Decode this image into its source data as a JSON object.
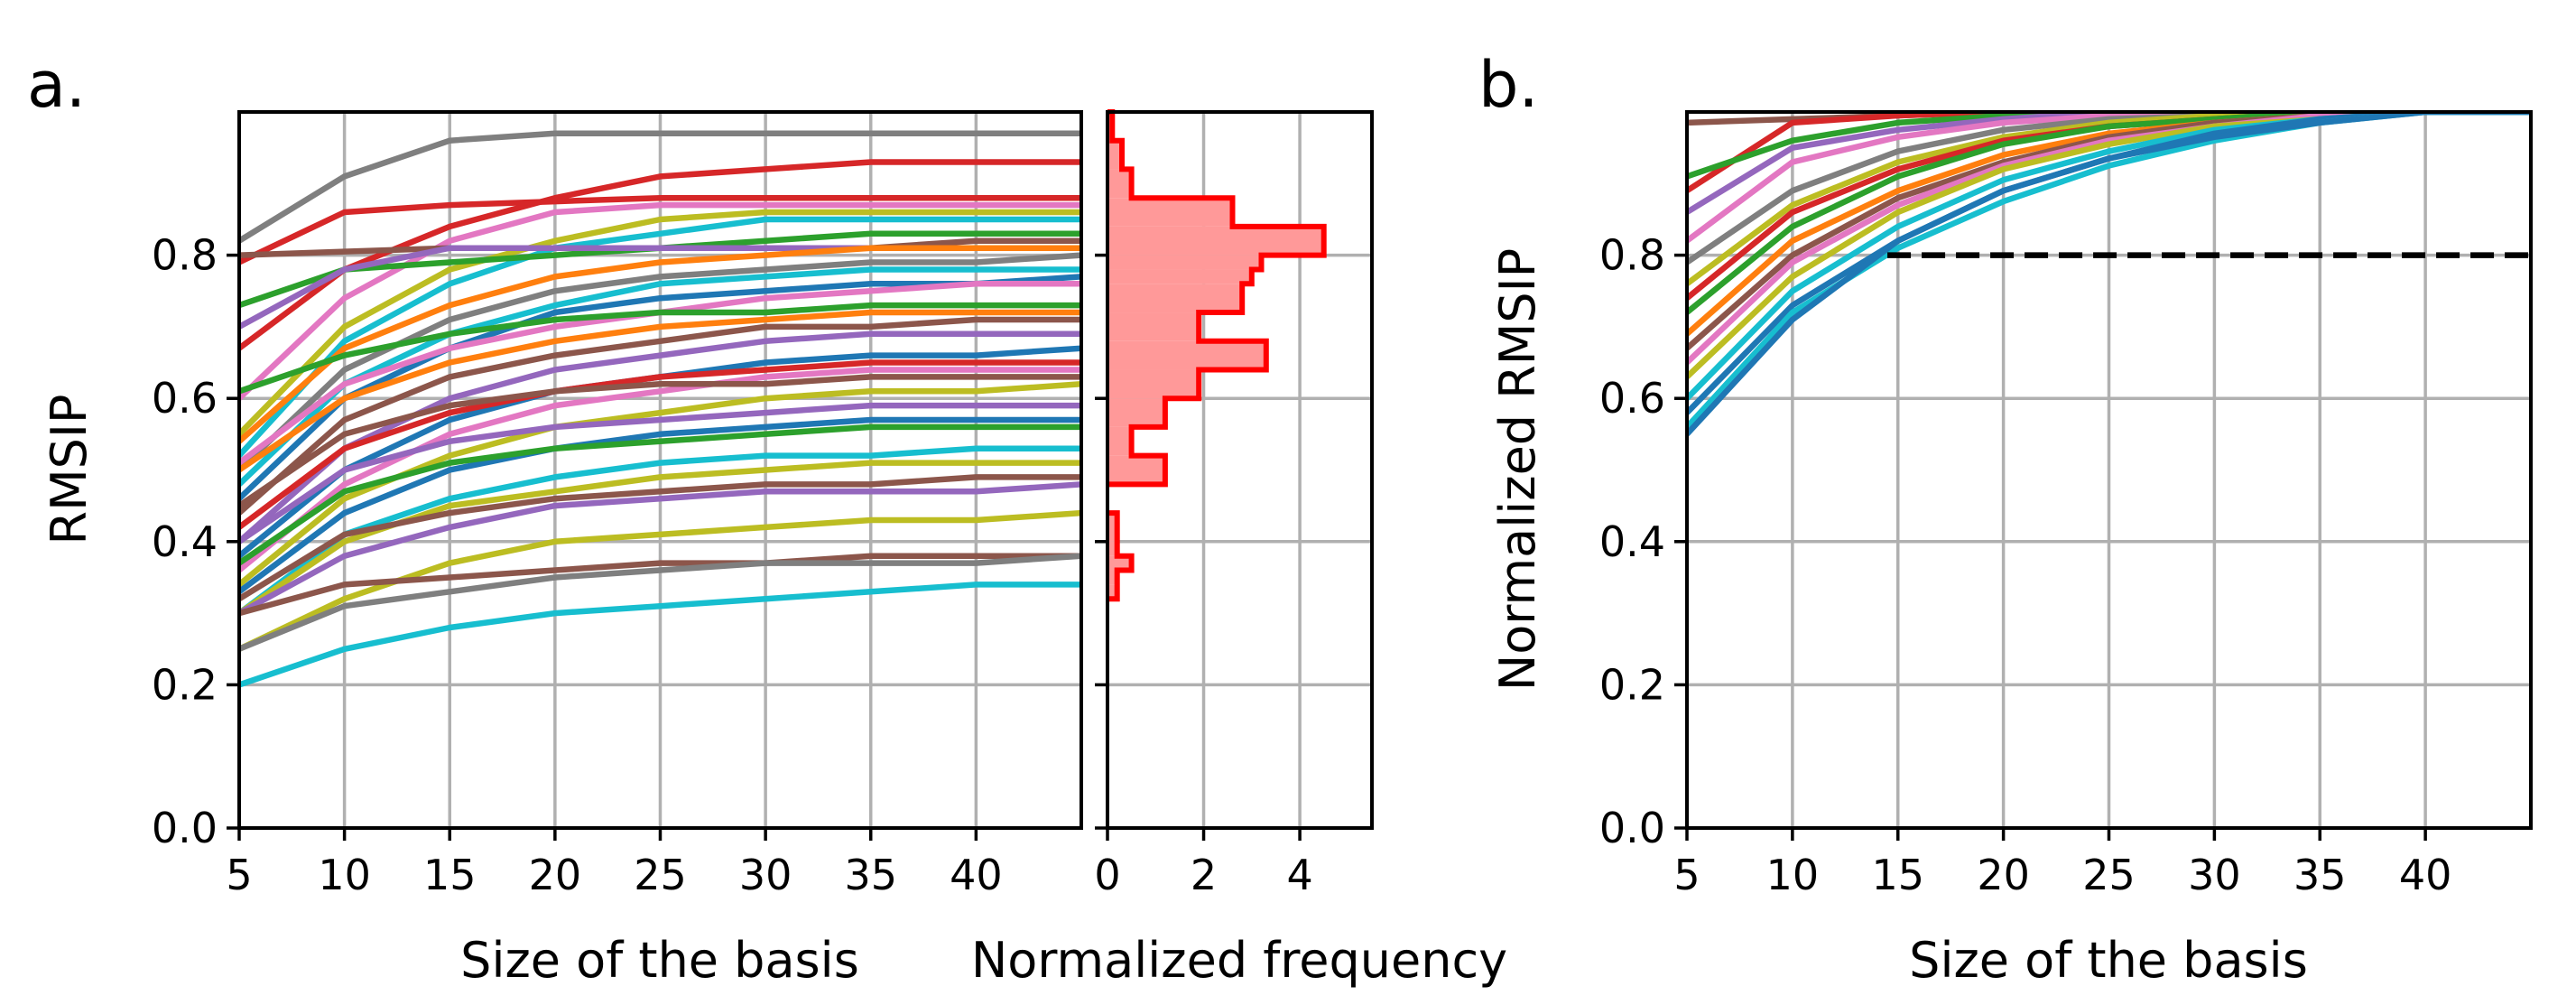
{
  "chart_data": [
    {
      "panel": "a.",
      "type": "line",
      "xlabel": "Size of the basis",
      "ylabel": "RMSIP",
      "x": [
        5,
        10,
        15,
        20,
        25,
        30,
        35,
        40,
        45
      ],
      "xlim": [
        5,
        45
      ],
      "ylim": [
        0,
        1
      ],
      "xticks": [
        "5",
        "10",
        "15",
        "20",
        "25",
        "30",
        "35",
        "40"
      ],
      "yticks": [
        "0.0",
        "0.2",
        "0.4",
        "0.6",
        "0.8"
      ],
      "grid": true,
      "series": [
        {
          "color": "#7f7f7f",
          "values": [
            0.82,
            0.91,
            0.96,
            0.97,
            0.97,
            0.97,
            0.97,
            0.97,
            0.97
          ]
        },
        {
          "color": "#d62728",
          "values": [
            0.67,
            0.78,
            0.84,
            0.88,
            0.91,
            0.92,
            0.93,
            0.93,
            0.93
          ]
        },
        {
          "color": "#d62728",
          "values": [
            0.79,
            0.86,
            0.87,
            0.875,
            0.88,
            0.88,
            0.88,
            0.88,
            0.88
          ]
        },
        {
          "color": "#e377c2",
          "values": [
            0.6,
            0.74,
            0.82,
            0.86,
            0.87,
            0.87,
            0.87,
            0.87,
            0.87
          ]
        },
        {
          "color": "#bcbd22",
          "values": [
            0.55,
            0.7,
            0.78,
            0.82,
            0.85,
            0.86,
            0.86,
            0.86,
            0.86
          ]
        },
        {
          "color": "#17becf",
          "values": [
            0.52,
            0.68,
            0.76,
            0.81,
            0.83,
            0.85,
            0.85,
            0.85,
            0.85
          ]
        },
        {
          "color": "#2ca02c",
          "values": [
            0.73,
            0.78,
            0.79,
            0.8,
            0.81,
            0.82,
            0.83,
            0.83,
            0.83
          ]
        },
        {
          "color": "#8c564b",
          "values": [
            0.8,
            0.805,
            0.81,
            0.81,
            0.81,
            0.81,
            0.81,
            0.82,
            0.82
          ]
        },
        {
          "color": "#9467bd",
          "values": [
            0.7,
            0.78,
            0.81,
            0.81,
            0.81,
            0.81,
            0.81,
            0.81,
            0.81
          ]
        },
        {
          "color": "#ff7f0e",
          "values": [
            0.54,
            0.67,
            0.73,
            0.77,
            0.79,
            0.8,
            0.81,
            0.81,
            0.81
          ]
        },
        {
          "color": "#7f7f7f",
          "values": [
            0.5,
            0.64,
            0.71,
            0.75,
            0.77,
            0.78,
            0.79,
            0.79,
            0.8
          ]
        },
        {
          "color": "#17becf",
          "values": [
            0.48,
            0.62,
            0.69,
            0.73,
            0.76,
            0.77,
            0.78,
            0.78,
            0.78
          ]
        },
        {
          "color": "#1f77b4",
          "values": [
            0.46,
            0.6,
            0.67,
            0.72,
            0.74,
            0.75,
            0.76,
            0.76,
            0.77
          ]
        },
        {
          "color": "#e377c2",
          "values": [
            0.51,
            0.62,
            0.67,
            0.7,
            0.72,
            0.74,
            0.75,
            0.76,
            0.76
          ]
        },
        {
          "color": "#2ca02c",
          "values": [
            0.61,
            0.66,
            0.69,
            0.71,
            0.72,
            0.72,
            0.73,
            0.73,
            0.73
          ]
        },
        {
          "color": "#ff7f0e",
          "values": [
            0.5,
            0.6,
            0.65,
            0.68,
            0.7,
            0.71,
            0.72,
            0.72,
            0.72
          ]
        },
        {
          "color": "#8c564b",
          "values": [
            0.44,
            0.57,
            0.63,
            0.66,
            0.68,
            0.7,
            0.7,
            0.71,
            0.71
          ]
        },
        {
          "color": "#9467bd",
          "values": [
            0.4,
            0.53,
            0.6,
            0.64,
            0.66,
            0.68,
            0.69,
            0.69,
            0.69
          ]
        },
        {
          "color": "#1f77b4",
          "values": [
            0.38,
            0.5,
            0.57,
            0.61,
            0.63,
            0.65,
            0.66,
            0.66,
            0.67
          ]
        },
        {
          "color": "#d62728",
          "values": [
            0.42,
            0.53,
            0.58,
            0.61,
            0.63,
            0.64,
            0.65,
            0.65,
            0.65
          ]
        },
        {
          "color": "#e377c2",
          "values": [
            0.36,
            0.48,
            0.55,
            0.59,
            0.61,
            0.63,
            0.64,
            0.64,
            0.64
          ]
        },
        {
          "color": "#8c564b",
          "values": [
            0.45,
            0.55,
            0.59,
            0.61,
            0.62,
            0.62,
            0.63,
            0.63,
            0.63
          ]
        },
        {
          "color": "#bcbd22",
          "values": [
            0.34,
            0.46,
            0.52,
            0.56,
            0.58,
            0.6,
            0.61,
            0.61,
            0.62
          ]
        },
        {
          "color": "#9467bd",
          "values": [
            0.4,
            0.5,
            0.54,
            0.56,
            0.57,
            0.58,
            0.59,
            0.59,
            0.59
          ]
        },
        {
          "color": "#1f77b4",
          "values": [
            0.33,
            0.44,
            0.5,
            0.53,
            0.55,
            0.56,
            0.57,
            0.57,
            0.57
          ]
        },
        {
          "color": "#2ca02c",
          "values": [
            0.37,
            0.47,
            0.51,
            0.53,
            0.54,
            0.55,
            0.56,
            0.56,
            0.56
          ]
        },
        {
          "color": "#17becf",
          "values": [
            0.3,
            0.41,
            0.46,
            0.49,
            0.51,
            0.52,
            0.52,
            0.53,
            0.53
          ]
        },
        {
          "color": "#bcbd22",
          "values": [
            0.3,
            0.4,
            0.45,
            0.47,
            0.49,
            0.5,
            0.51,
            0.51,
            0.51
          ]
        },
        {
          "color": "#8c564b",
          "values": [
            0.32,
            0.41,
            0.44,
            0.46,
            0.47,
            0.48,
            0.48,
            0.49,
            0.49
          ]
        },
        {
          "color": "#9467bd",
          "values": [
            0.3,
            0.38,
            0.42,
            0.45,
            0.46,
            0.47,
            0.47,
            0.47,
            0.48
          ]
        },
        {
          "color": "#bcbd22",
          "values": [
            0.25,
            0.32,
            0.37,
            0.4,
            0.41,
            0.42,
            0.43,
            0.43,
            0.44
          ]
        },
        {
          "color": "#8c564b",
          "values": [
            0.3,
            0.34,
            0.35,
            0.36,
            0.37,
            0.37,
            0.38,
            0.38,
            0.38
          ]
        },
        {
          "color": "#7f7f7f",
          "values": [
            0.25,
            0.31,
            0.33,
            0.35,
            0.36,
            0.37,
            0.37,
            0.37,
            0.38
          ]
        },
        {
          "color": "#17becf",
          "values": [
            0.2,
            0.25,
            0.28,
            0.3,
            0.31,
            0.32,
            0.33,
            0.34,
            0.34
          ]
        }
      ]
    },
    {
      "panel": "a.",
      "type": "histogram",
      "orientation": "horizontal",
      "xlabel": "Normalized frequency",
      "xlim": [
        0,
        5.5
      ],
      "ylim": [
        0,
        1
      ],
      "xticks": [
        "0",
        "2",
        "4"
      ],
      "fill_color": "#ff9999",
      "edge_color": "#ff0000",
      "bins": [
        {
          "y0": 0.32,
          "y1": 0.34,
          "freq": 0.2
        },
        {
          "y0": 0.34,
          "y1": 0.36,
          "freq": 0.2
        },
        {
          "y0": 0.36,
          "y1": 0.38,
          "freq": 0.5
        },
        {
          "y0": 0.38,
          "y1": 0.4,
          "freq": 0.2
        },
        {
          "y0": 0.4,
          "y1": 0.44,
          "freq": 0.2
        },
        {
          "y0": 0.48,
          "y1": 0.52,
          "freq": 1.2
        },
        {
          "y0": 0.52,
          "y1": 0.56,
          "freq": 0.5
        },
        {
          "y0": 0.56,
          "y1": 0.6,
          "freq": 1.2
        },
        {
          "y0": 0.6,
          "y1": 0.64,
          "freq": 1.9
        },
        {
          "y0": 0.64,
          "y1": 0.68,
          "freq": 3.3
        },
        {
          "y0": 0.68,
          "y1": 0.72,
          "freq": 1.9
        },
        {
          "y0": 0.72,
          "y1": 0.76,
          "freq": 2.8
        },
        {
          "y0": 0.76,
          "y1": 0.78,
          "freq": 3.0
        },
        {
          "y0": 0.78,
          "y1": 0.8,
          "freq": 3.2
        },
        {
          "y0": 0.8,
          "y1": 0.84,
          "freq": 4.5
        },
        {
          "y0": 0.84,
          "y1": 0.88,
          "freq": 2.6
        },
        {
          "y0": 0.88,
          "y1": 0.92,
          "freq": 0.5
        },
        {
          "y0": 0.92,
          "y1": 0.96,
          "freq": 0.3
        },
        {
          "y0": 0.96,
          "y1": 1.0,
          "freq": 0.1
        }
      ]
    },
    {
      "panel": "b.",
      "type": "line",
      "xlabel": "Size of the basis",
      "ylabel": "Normalized RMSIP",
      "x": [
        5,
        10,
        15,
        20,
        25,
        30,
        35,
        40,
        45
      ],
      "xlim": [
        5,
        45
      ],
      "ylim": [
        0,
        1
      ],
      "xticks": [
        "5",
        "10",
        "15",
        "20",
        "25",
        "30",
        "35",
        "40"
      ],
      "yticks": [
        "0.0",
        "0.2",
        "0.4",
        "0.6",
        "0.8"
      ],
      "grid": true,
      "threshold": {
        "y": 0.8,
        "x_start": 14.5,
        "x_end": 45,
        "style": "dashed",
        "color": "#000000"
      },
      "series": [
        {
          "color": "#8c564b",
          "values": [
            0.985,
            0.99,
            0.995,
            1.0,
            1.0,
            1.0,
            1.0,
            1.0,
            1.0
          ]
        },
        {
          "color": "#d62728",
          "values": [
            0.89,
            0.985,
            0.995,
            1.0,
            1.0,
            1.0,
            1.0,
            1.0,
            1.0
          ]
        },
        {
          "color": "#2ca02c",
          "values": [
            0.91,
            0.96,
            0.985,
            0.995,
            1.0,
            1.0,
            1.0,
            1.0,
            1.0
          ]
        },
        {
          "color": "#9467bd",
          "values": [
            0.86,
            0.95,
            0.975,
            0.99,
            1.0,
            1.0,
            1.0,
            1.0,
            1.0
          ]
        },
        {
          "color": "#e377c2",
          "values": [
            0.82,
            0.93,
            0.965,
            0.985,
            0.995,
            1.0,
            1.0,
            1.0,
            1.0
          ]
        },
        {
          "color": "#7f7f7f",
          "values": [
            0.79,
            0.89,
            0.945,
            0.975,
            0.99,
            0.995,
            1.0,
            1.0,
            1.0
          ]
        },
        {
          "color": "#bcbd22",
          "values": [
            0.76,
            0.87,
            0.93,
            0.965,
            0.985,
            0.995,
            1.0,
            1.0,
            1.0
          ]
        },
        {
          "color": "#d62728",
          "values": [
            0.74,
            0.86,
            0.92,
            0.96,
            0.98,
            0.99,
            1.0,
            1.0,
            1.0
          ]
        },
        {
          "color": "#2ca02c",
          "values": [
            0.72,
            0.84,
            0.91,
            0.955,
            0.98,
            0.99,
            1.0,
            1.0,
            1.0
          ]
        },
        {
          "color": "#ff7f0e",
          "values": [
            0.69,
            0.82,
            0.89,
            0.94,
            0.97,
            0.985,
            0.995,
            1.0,
            1.0
          ]
        },
        {
          "color": "#8c564b",
          "values": [
            0.67,
            0.8,
            0.88,
            0.93,
            0.965,
            0.985,
            0.995,
            1.0,
            1.0
          ]
        },
        {
          "color": "#e377c2",
          "values": [
            0.65,
            0.79,
            0.87,
            0.925,
            0.96,
            0.98,
            0.995,
            1.0,
            1.0
          ]
        },
        {
          "color": "#bcbd22",
          "values": [
            0.63,
            0.77,
            0.86,
            0.92,
            0.955,
            0.98,
            0.99,
            1.0,
            1.0
          ]
        },
        {
          "color": "#17becf",
          "values": [
            0.6,
            0.75,
            0.84,
            0.905,
            0.945,
            0.975,
            0.99,
            1.0,
            1.0
          ]
        },
        {
          "color": "#1f77b4",
          "values": [
            0.58,
            0.73,
            0.82,
            0.89,
            0.935,
            0.97,
            0.99,
            1.0,
            1.0
          ]
        },
        {
          "color": "#17becf",
          "values": [
            0.56,
            0.72,
            0.81,
            0.875,
            0.925,
            0.96,
            0.985,
            1.0,
            1.0
          ]
        },
        {
          "color": "#1f77b4",
          "values": [
            0.55,
            0.71,
            0.82,
            0.89,
            0.935,
            0.965,
            0.985,
            1.0,
            1.0
          ]
        }
      ]
    }
  ]
}
